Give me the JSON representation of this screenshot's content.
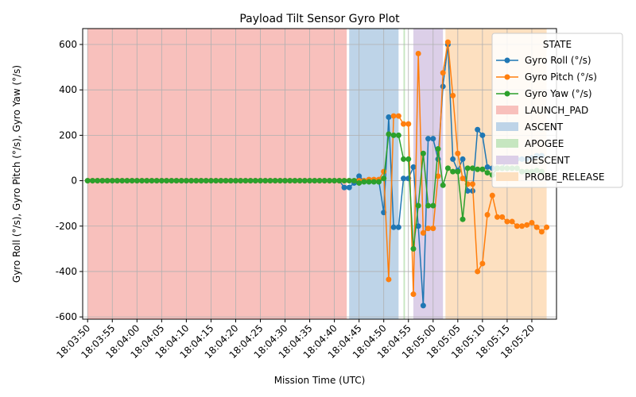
{
  "chart_data": {
    "type": "line",
    "title": "Payload Tilt Sensor Gyro Plot",
    "xlabel": "Mission Time (UTC)",
    "ylabel": "Gyro Roll (°/s), Gyro Pitch (°/s), Gyro Yaw (°/s)",
    "xlim_seconds_after_18_03_50": [
      -1,
      95
    ],
    "ylim": [
      -610,
      670
    ],
    "grid": true,
    "legend": {
      "title": "STATE",
      "placement": "upper-right"
    },
    "x_ticks": [
      "18:03:50",
      "18:03:55",
      "18:04:00",
      "18:04:05",
      "18:04:10",
      "18:04:15",
      "18:04:20",
      "18:04:25",
      "18:04:30",
      "18:04:35",
      "18:04:40",
      "18:04:45",
      "18:04:50",
      "18:04:55",
      "18:05:00",
      "18:05:05",
      "18:05:10",
      "18:05:15",
      "18:05:20"
    ],
    "y_ticks": [
      -600,
      -400,
      -200,
      0,
      200,
      400,
      600
    ],
    "states": [
      {
        "name": "LAUNCH_PAD",
        "start": "18:03:50",
        "end": "18:04:42.5",
        "color": "#f8c0bc"
      },
      {
        "name": "ASCENT",
        "start": "18:04:43",
        "end": "18:04:53",
        "color": "#bed4e8"
      },
      {
        "name": "APOGEE",
        "start": "18:04:54",
        "end": "18:04:54.3",
        "color": "#c6e6c0"
      },
      {
        "name": "DESCENT",
        "start": "18:04:56",
        "end": "18:05:02",
        "color": "#dccfe8"
      },
      {
        "name": "PROBE_RELEASE",
        "start": "18:05:02.5",
        "end": "18:05:23",
        "color": "#fde0c0"
      }
    ],
    "series": [
      {
        "name": "Gyro Roll (°/s)",
        "color": "#1f77b4",
        "points": [
          [
            "18:03:50",
            0
          ],
          [
            "18:03:51",
            0
          ],
          [
            "18:03:52",
            0
          ],
          [
            "18:03:53",
            0
          ],
          [
            "18:03:54",
            0
          ],
          [
            "18:03:55",
            0
          ],
          [
            "18:03:56",
            0
          ],
          [
            "18:03:57",
            0
          ],
          [
            "18:03:58",
            0
          ],
          [
            "18:03:59",
            0
          ],
          [
            "18:04:00",
            0
          ],
          [
            "18:04:01",
            0
          ],
          [
            "18:04:02",
            0
          ],
          [
            "18:04:03",
            0
          ],
          [
            "18:04:04",
            0
          ],
          [
            "18:04:05",
            0
          ],
          [
            "18:04:06",
            0
          ],
          [
            "18:04:07",
            0
          ],
          [
            "18:04:08",
            0
          ],
          [
            "18:04:09",
            0
          ],
          [
            "18:04:10",
            0
          ],
          [
            "18:04:11",
            0
          ],
          [
            "18:04:12",
            0
          ],
          [
            "18:04:13",
            0
          ],
          [
            "18:04:14",
            0
          ],
          [
            "18:04:15",
            0
          ],
          [
            "18:04:16",
            0
          ],
          [
            "18:04:17",
            0
          ],
          [
            "18:04:18",
            0
          ],
          [
            "18:04:19",
            0
          ],
          [
            "18:04:20",
            0
          ],
          [
            "18:04:21",
            0
          ],
          [
            "18:04:22",
            0
          ],
          [
            "18:04:23",
            0
          ],
          [
            "18:04:24",
            0
          ],
          [
            "18:04:25",
            0
          ],
          [
            "18:04:26",
            0
          ],
          [
            "18:04:27",
            0
          ],
          [
            "18:04:28",
            0
          ],
          [
            "18:04:29",
            0
          ],
          [
            "18:04:30",
            0
          ],
          [
            "18:04:31",
            0
          ],
          [
            "18:04:32",
            0
          ],
          [
            "18:04:33",
            0
          ],
          [
            "18:04:34",
            0
          ],
          [
            "18:04:35",
            0
          ],
          [
            "18:04:36",
            0
          ],
          [
            "18:04:37",
            0
          ],
          [
            "18:04:38",
            0
          ],
          [
            "18:04:39",
            0
          ],
          [
            "18:04:40",
            0
          ],
          [
            "18:04:41",
            0
          ],
          [
            "18:04:42",
            -30
          ],
          [
            "18:04:43",
            -30
          ],
          [
            "18:04:44",
            -10
          ],
          [
            "18:04:45",
            20
          ],
          [
            "18:04:46",
            0
          ],
          [
            "18:04:47",
            0
          ],
          [
            "18:04:48",
            0
          ],
          [
            "18:04:49",
            0
          ],
          [
            "18:04:50",
            -140
          ],
          [
            "18:04:51",
            280
          ],
          [
            "18:04:52",
            -205
          ],
          [
            "18:04:53",
            -205
          ],
          [
            "18:04:54",
            10
          ],
          [
            "18:04:55",
            10
          ],
          [
            "18:04:56",
            60
          ],
          [
            "18:04:57",
            -200
          ],
          [
            "18:04:58",
            -550
          ],
          [
            "18:04:59",
            185
          ],
          [
            "18:05:00",
            185
          ],
          [
            "18:05:01",
            95
          ],
          [
            "18:05:02",
            415
          ],
          [
            "18:05:03",
            600
          ],
          [
            "18:05:04",
            95
          ],
          [
            "18:05:05",
            45
          ],
          [
            "18:05:06",
            95
          ],
          [
            "18:05:07",
            -45
          ],
          [
            "18:05:08",
            -45
          ],
          [
            "18:05:09",
            225
          ],
          [
            "18:05:10",
            200
          ],
          [
            "18:05:11",
            60
          ],
          [
            "18:05:12",
            55
          ],
          [
            "18:05:13",
            55
          ],
          [
            "18:05:14",
            55
          ],
          [
            "18:05:15",
            95
          ],
          [
            "18:05:16",
            95
          ],
          [
            "18:05:17",
            95
          ],
          [
            "18:05:18",
            95
          ],
          [
            "18:05:19",
            95
          ],
          [
            "18:05:20",
            100
          ],
          [
            "18:05:21",
            110
          ],
          [
            "18:05:22",
            110
          ]
        ]
      },
      {
        "name": "Gyro Pitch (°/s)",
        "color": "#ff7f0e",
        "points": [
          [
            "18:03:50",
            0
          ],
          [
            "18:03:51",
            0
          ],
          [
            "18:03:52",
            0
          ],
          [
            "18:03:53",
            0
          ],
          [
            "18:03:54",
            0
          ],
          [
            "18:03:55",
            0
          ],
          [
            "18:03:56",
            0
          ],
          [
            "18:03:57",
            0
          ],
          [
            "18:03:58",
            0
          ],
          [
            "18:03:59",
            0
          ],
          [
            "18:04:00",
            0
          ],
          [
            "18:04:01",
            0
          ],
          [
            "18:04:02",
            0
          ],
          [
            "18:04:03",
            0
          ],
          [
            "18:04:04",
            0
          ],
          [
            "18:04:05",
            0
          ],
          [
            "18:04:06",
            0
          ],
          [
            "18:04:07",
            0
          ],
          [
            "18:04:08",
            0
          ],
          [
            "18:04:09",
            0
          ],
          [
            "18:04:10",
            0
          ],
          [
            "18:04:11",
            0
          ],
          [
            "18:04:12",
            0
          ],
          [
            "18:04:13",
            0
          ],
          [
            "18:04:14",
            0
          ],
          [
            "18:04:15",
            0
          ],
          [
            "18:04:16",
            0
          ],
          [
            "18:04:17",
            0
          ],
          [
            "18:04:18",
            0
          ],
          [
            "18:04:19",
            0
          ],
          [
            "18:04:20",
            0
          ],
          [
            "18:04:21",
            0
          ],
          [
            "18:04:22",
            0
          ],
          [
            "18:04:23",
            0
          ],
          [
            "18:04:24",
            0
          ],
          [
            "18:04:25",
            0
          ],
          [
            "18:04:26",
            0
          ],
          [
            "18:04:27",
            0
          ],
          [
            "18:04:28",
            0
          ],
          [
            "18:04:29",
            0
          ],
          [
            "18:04:30",
            0
          ],
          [
            "18:04:31",
            0
          ],
          [
            "18:04:32",
            0
          ],
          [
            "18:04:33",
            0
          ],
          [
            "18:04:34",
            0
          ],
          [
            "18:04:35",
            0
          ],
          [
            "18:04:36",
            0
          ],
          [
            "18:04:37",
            0
          ],
          [
            "18:04:38",
            0
          ],
          [
            "18:04:39",
            0
          ],
          [
            "18:04:40",
            0
          ],
          [
            "18:04:41",
            0
          ],
          [
            "18:04:42",
            0
          ],
          [
            "18:04:43",
            0
          ],
          [
            "18:04:44",
            0
          ],
          [
            "18:04:45",
            0
          ],
          [
            "18:04:46",
            0
          ],
          [
            "18:04:47",
            5
          ],
          [
            "18:04:48",
            5
          ],
          [
            "18:04:49",
            5
          ],
          [
            "18:04:50",
            40
          ],
          [
            "18:04:51",
            -435
          ],
          [
            "18:04:52",
            285
          ],
          [
            "18:04:53",
            285
          ],
          [
            "18:04:54",
            250
          ],
          [
            "18:04:55",
            250
          ],
          [
            "18:04:56",
            -500
          ],
          [
            "18:04:57",
            560
          ],
          [
            "18:04:58",
            -230
          ],
          [
            "18:04:59",
            -210
          ],
          [
            "18:05:00",
            -210
          ],
          [
            "18:05:01",
            20
          ],
          [
            "18:05:02",
            475
          ],
          [
            "18:05:03",
            610
          ],
          [
            "18:05:04",
            375
          ],
          [
            "18:05:05",
            120
          ],
          [
            "18:05:06",
            10
          ],
          [
            "18:05:07",
            -15
          ],
          [
            "18:05:08",
            -15
          ],
          [
            "18:05:09",
            -400
          ],
          [
            "18:05:10",
            -365
          ],
          [
            "18:05:11",
            -150
          ],
          [
            "18:05:12",
            -65
          ],
          [
            "18:05:13",
            -160
          ],
          [
            "18:05:14",
            -160
          ],
          [
            "18:05:15",
            -180
          ],
          [
            "18:05:16",
            -180
          ],
          [
            "18:05:17",
            -200
          ],
          [
            "18:05:18",
            -200
          ],
          [
            "18:05:19",
            -195
          ],
          [
            "18:05:20",
            -185
          ],
          [
            "18:05:21",
            -205
          ],
          [
            "18:05:22",
            -225
          ],
          [
            "18:05:23",
            -205
          ]
        ]
      },
      {
        "name": "Gyro Yaw (°/s)",
        "color": "#2ca02c",
        "points": [
          [
            "18:03:50",
            0
          ],
          [
            "18:03:51",
            0
          ],
          [
            "18:03:52",
            0
          ],
          [
            "18:03:53",
            0
          ],
          [
            "18:03:54",
            0
          ],
          [
            "18:03:55",
            0
          ],
          [
            "18:03:56",
            0
          ],
          [
            "18:03:57",
            0
          ],
          [
            "18:03:58",
            0
          ],
          [
            "18:03:59",
            0
          ],
          [
            "18:04:00",
            0
          ],
          [
            "18:04:01",
            0
          ],
          [
            "18:04:02",
            0
          ],
          [
            "18:04:03",
            0
          ],
          [
            "18:04:04",
            0
          ],
          [
            "18:04:05",
            0
          ],
          [
            "18:04:06",
            0
          ],
          [
            "18:04:07",
            0
          ],
          [
            "18:04:08",
            0
          ],
          [
            "18:04:09",
            0
          ],
          [
            "18:04:10",
            0
          ],
          [
            "18:04:11",
            0
          ],
          [
            "18:04:12",
            0
          ],
          [
            "18:04:13",
            0
          ],
          [
            "18:04:14",
            0
          ],
          [
            "18:04:15",
            0
          ],
          [
            "18:04:16",
            0
          ],
          [
            "18:04:17",
            0
          ],
          [
            "18:04:18",
            0
          ],
          [
            "18:04:19",
            0
          ],
          [
            "18:04:20",
            0
          ],
          [
            "18:04:21",
            0
          ],
          [
            "18:04:22",
            0
          ],
          [
            "18:04:23",
            0
          ],
          [
            "18:04:24",
            0
          ],
          [
            "18:04:25",
            0
          ],
          [
            "18:04:26",
            0
          ],
          [
            "18:04:27",
            0
          ],
          [
            "18:04:28",
            0
          ],
          [
            "18:04:29",
            0
          ],
          [
            "18:04:30",
            0
          ],
          [
            "18:04:31",
            0
          ],
          [
            "18:04:32",
            0
          ],
          [
            "18:04:33",
            0
          ],
          [
            "18:04:34",
            0
          ],
          [
            "18:04:35",
            0
          ],
          [
            "18:04:36",
            0
          ],
          [
            "18:04:37",
            0
          ],
          [
            "18:04:38",
            0
          ],
          [
            "18:04:39",
            0
          ],
          [
            "18:04:40",
            0
          ],
          [
            "18:04:41",
            0
          ],
          [
            "18:04:42",
            0
          ],
          [
            "18:04:43",
            0
          ],
          [
            "18:04:44",
            0
          ],
          [
            "18:04:45",
            -10
          ],
          [
            "18:04:46",
            -5
          ],
          [
            "18:04:47",
            -5
          ],
          [
            "18:04:48",
            -5
          ],
          [
            "18:04:49",
            -5
          ],
          [
            "18:04:50",
            10
          ],
          [
            "18:04:51",
            205
          ],
          [
            "18:04:52",
            200
          ],
          [
            "18:04:53",
            200
          ],
          [
            "18:04:54",
            95
          ],
          [
            "18:04:55",
            95
          ],
          [
            "18:04:56",
            -300
          ],
          [
            "18:04:57",
            -110
          ],
          [
            "18:04:58",
            120
          ],
          [
            "18:04:59",
            -110
          ],
          [
            "18:05:00",
            -110
          ],
          [
            "18:05:01",
            140
          ],
          [
            "18:05:02",
            -20
          ],
          [
            "18:05:03",
            55
          ],
          [
            "18:05:04",
            40
          ],
          [
            "18:05:05",
            40
          ],
          [
            "18:05:06",
            -170
          ],
          [
            "18:05:07",
            55
          ],
          [
            "18:05:08",
            55
          ],
          [
            "18:05:09",
            50
          ],
          [
            "18:05:10",
            50
          ],
          [
            "18:05:11",
            35
          ],
          [
            "18:05:12",
            25
          ],
          [
            "18:05:13",
            55
          ],
          [
            "18:05:14",
            55
          ],
          [
            "18:05:15",
            55
          ],
          [
            "18:05:16",
            55
          ],
          [
            "18:05:17",
            55
          ],
          [
            "18:05:18",
            40
          ],
          [
            "18:05:19",
            40
          ],
          [
            "18:05:20",
            40
          ],
          [
            "18:05:21",
            45
          ],
          [
            "18:05:22",
            40
          ]
        ]
      }
    ]
  }
}
